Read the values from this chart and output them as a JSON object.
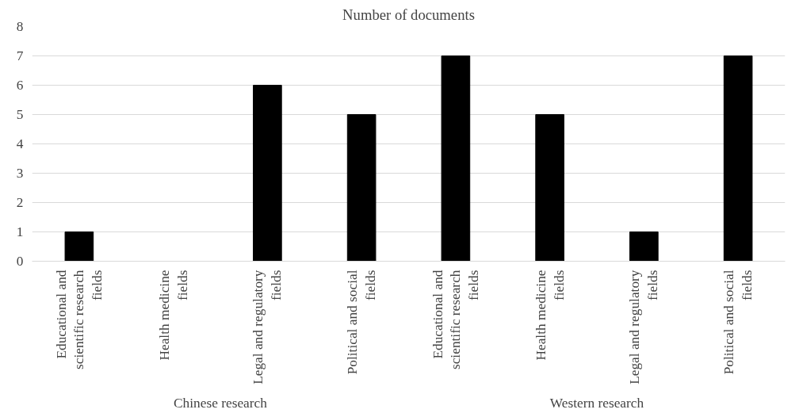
{
  "chart_data": {
    "type": "bar",
    "title": "Number of documents",
    "categories": [
      "Educational and scientific research fields",
      "Health medicine fields",
      "Legal and regulatory fields",
      "Political and social fields",
      "Educational and scientific research fields",
      "Health medicine fields",
      "Legal and regulatory fields",
      "Political and social fields"
    ],
    "values": [
      1,
      0,
      6,
      5,
      7,
      5,
      1,
      7
    ],
    "color": "#000000",
    "ylim": [
      0,
      8
    ],
    "yticks": [
      0,
      1,
      2,
      3,
      4,
      5,
      6,
      7,
      8
    ],
    "grid": "y",
    "annotations": [
      "Chinese research",
      "Western research"
    ]
  }
}
